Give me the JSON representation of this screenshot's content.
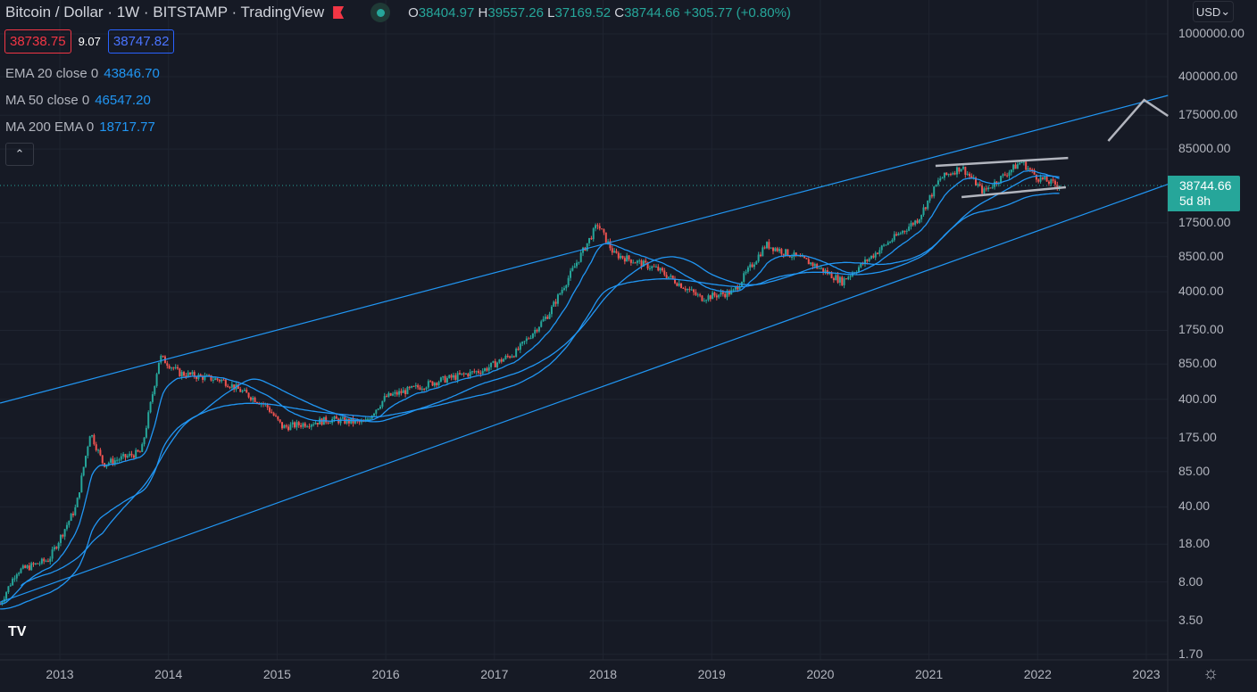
{
  "header": {
    "title": "Bitcoin / Dollar · 1W · BITSTAMP · TradingView",
    "ohlc": [
      {
        "k": "O",
        "v": "38404.97"
      },
      {
        "k": "H",
        "v": "39557.26"
      },
      {
        "k": "L",
        "v": "37169.52"
      },
      {
        "k": "C",
        "v": "38744.66"
      }
    ],
    "change": "+305.77 (+0.80%)"
  },
  "quote": {
    "bid": "38738.75",
    "spread": "9.07",
    "ask": "38747.82"
  },
  "indicators": [
    {
      "label": "EMA 20 close 0",
      "value": "43846.70"
    },
    {
      "label": "MA 50 close 0",
      "value": "46547.20"
    },
    {
      "label": "MA 200 EMA 0",
      "value": "18717.77"
    }
  ],
  "currency": "USD",
  "current_price": {
    "value": "38744.66",
    "countdown": "5d 8h"
  },
  "colors": {
    "up": "#26a69a",
    "down": "#ef5350",
    "ma": "#2196f3",
    "drawing": "#b2b5be",
    "bg": "#161a25"
  },
  "chart_data": {
    "type": "candlestick",
    "scale": "log",
    "symbol": "BTCUSD",
    "interval": "1W",
    "y_ticks": [
      "1000000.00",
      "400000.00",
      "175000.00",
      "85000.00",
      "17500.00",
      "8500.00",
      "4000.00",
      "1750.00",
      "850.00",
      "400.00",
      "175.00",
      "85.00",
      "40.00",
      "18.00",
      "8.00",
      "3.50",
      "1.70"
    ],
    "x_ticks": [
      "2013",
      "2014",
      "2015",
      "2016",
      "2017",
      "2018",
      "2019",
      "2020",
      "2021",
      "2022",
      "2023"
    ],
    "xlim": [
      2012.45,
      2023.2
    ],
    "ylim": [
      1.7,
      1000000
    ],
    "price_path": [
      [
        2012.45,
        5
      ],
      [
        2012.6,
        10
      ],
      [
        2012.9,
        13
      ],
      [
        2013.15,
        40
      ],
      [
        2013.28,
        200
      ],
      [
        2013.4,
        100
      ],
      [
        2013.75,
        130
      ],
      [
        2013.92,
        1000
      ],
      [
        2014.1,
        700
      ],
      [
        2014.5,
        600
      ],
      [
        2014.9,
        350
      ],
      [
        2015.05,
        220
      ],
      [
        2015.5,
        260
      ],
      [
        2015.8,
        240
      ],
      [
        2016.0,
        420
      ],
      [
        2016.5,
        600
      ],
      [
        2016.9,
        750
      ],
      [
        2017.2,
        1100
      ],
      [
        2017.5,
        2500
      ],
      [
        2017.95,
        17000
      ],
      [
        2018.1,
        9000
      ],
      [
        2018.5,
        6500
      ],
      [
        2018.9,
        3500
      ],
      [
        2019.2,
        4000
      ],
      [
        2019.5,
        11000
      ],
      [
        2019.9,
        7500
      ],
      [
        2020.2,
        5000
      ],
      [
        2020.6,
        11000
      ],
      [
        2020.9,
        19000
      ],
      [
        2021.1,
        45000
      ],
      [
        2021.3,
        58000
      ],
      [
        2021.5,
        34000
      ],
      [
        2021.85,
        65000
      ],
      [
        2022.0,
        46000
      ],
      [
        2022.2,
        38744.66
      ]
    ],
    "trendlines": [
      {
        "name": "upper-channel",
        "points": [
          [
            2012.45,
            369
          ],
          [
            2023.2,
            268000
          ]
        ],
        "color": "#2196f3"
      },
      {
        "name": "lower-channel",
        "points": [
          [
            2012.45,
            5.2
          ],
          [
            2023.2,
            40000
          ]
        ],
        "color": "#2196f3"
      },
      {
        "name": "wedge-top",
        "points": [
          [
            2021.06,
            59300
          ],
          [
            2022.28,
            70300
          ]
        ],
        "color": "#b2b5be"
      },
      {
        "name": "wedge-bottom",
        "points": [
          [
            2021.3,
            30400
          ],
          [
            2022.26,
            37500
          ]
        ],
        "color": "#b2b5be"
      },
      {
        "name": "projection-arrow",
        "points": [
          [
            2022.65,
            101000
          ],
          [
            2022.98,
            243000
          ],
          [
            2023.2,
            172600
          ]
        ],
        "color": "#b2b5be"
      }
    ],
    "moving_averages": [
      {
        "name": "EMA 20",
        "period": 20
      },
      {
        "name": "MA 50",
        "period": 50
      },
      {
        "name": "MA 200",
        "period": 200
      }
    ]
  }
}
